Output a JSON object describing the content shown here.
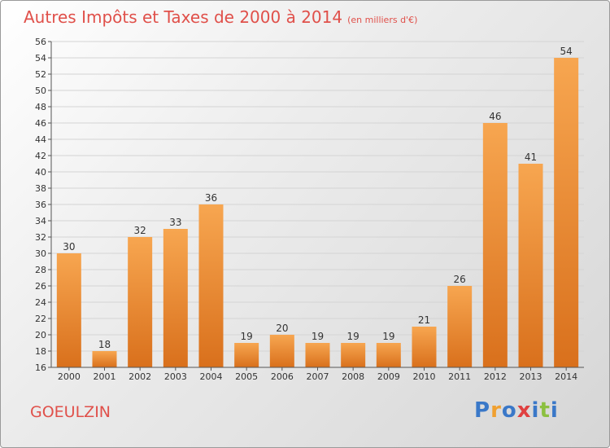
{
  "title": "Autres Impôts et Taxes de 2000 à 2014",
  "subtitle": "(en milliers d'€)",
  "commune": "GOEULZIN",
  "logo": {
    "text": "Proxiti",
    "letters": [
      "P",
      "r",
      "o",
      "x",
      "i",
      "t",
      "i"
    ],
    "colors": [
      "#3a78c8",
      "#f0a030",
      "#3a78c8",
      "#e04040",
      "#3a78c8",
      "#8cc040",
      "#3a78c8"
    ]
  },
  "colors": {
    "bar_top": "#f7a650",
    "bar_bottom": "#d9701c",
    "title": "#e0504a"
  },
  "chart_data": {
    "type": "bar",
    "categories": [
      "2000",
      "2001",
      "2002",
      "2003",
      "2004",
      "2005",
      "2006",
      "2007",
      "2008",
      "2009",
      "2010",
      "2011",
      "2012",
      "2013",
      "2014"
    ],
    "values": [
      30,
      18,
      32,
      33,
      36,
      19,
      20,
      19,
      19,
      19,
      21,
      26,
      46,
      41,
      54
    ],
    "ylim": [
      16,
      56
    ],
    "ytick_step": 2,
    "grid": true,
    "xlabel": "",
    "ylabel": ""
  }
}
